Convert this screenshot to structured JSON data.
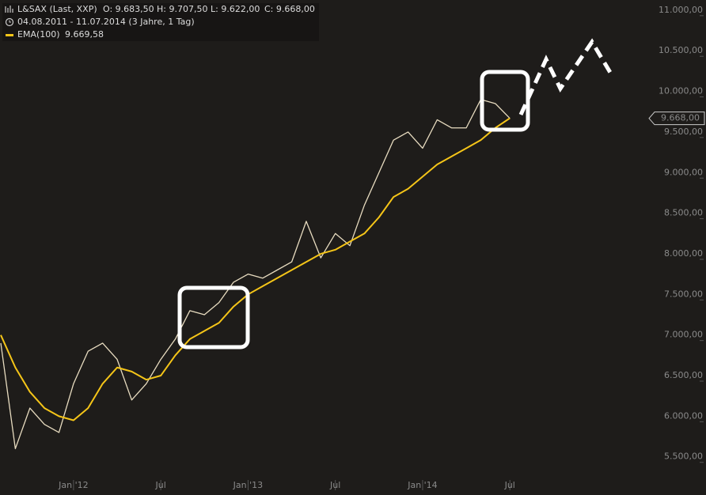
{
  "chart_data": {
    "type": "line",
    "header": {
      "ohlc": [
        "O: 9.683,50",
        "H: 9.707,50",
        "L: 9.622,00",
        "C: 9.668,00"
      ],
      "period": "04.08.2011 - 11.07.2014 (3 Jahre, 1 Tag)",
      "ema_value": "9.669,58"
    },
    "x": [
      "2011-08",
      "2011-09",
      "2011-10",
      "2011-11",
      "2011-12",
      "2012-01",
      "2012-02",
      "2012-03",
      "2012-04",
      "2012-05",
      "2012-06",
      "2012-07",
      "2012-08",
      "2012-09",
      "2012-10",
      "2012-11",
      "2012-12",
      "2013-01",
      "2013-02",
      "2013-03",
      "2013-04",
      "2013-05",
      "2013-06",
      "2013-07",
      "2013-08",
      "2013-09",
      "2013-10",
      "2013-11",
      "2013-12",
      "2014-01",
      "2014-02",
      "2014-03",
      "2014-04",
      "2014-05",
      "2014-06",
      "2014-07"
    ],
    "series": [
      {
        "name": "L&SAX (Last, XXP)",
        "color": "#e8dcc0",
        "values": [
          6900,
          5600,
          6100,
          5900,
          5800,
          6400,
          6800,
          6900,
          6700,
          6200,
          6400,
          6700,
          6950,
          7300,
          7250,
          7400,
          7650,
          7750,
          7700,
          7800,
          7900,
          8400,
          7950,
          8250,
          8100,
          8600,
          9000,
          9400,
          9500,
          9300,
          9650,
          9550,
          9550,
          9900,
          9850,
          9668
        ]
      },
      {
        "name": "EMA(100)",
        "color": "#f5c518",
        "values": [
          7000,
          6600,
          6300,
          6100,
          6000,
          5950,
          6100,
          6400,
          6600,
          6550,
          6450,
          6500,
          6750,
          6950,
          7050,
          7150,
          7350,
          7500,
          7600,
          7700,
          7800,
          7900,
          8000,
          8050,
          8150,
          8250,
          8450,
          8700,
          8800,
          8950,
          9100,
          9200,
          9300,
          9400,
          9550,
          9670
        ]
      }
    ],
    "last_price": 9668,
    "last_price_label": "9.668,00",
    "xlim": [
      "2011-08",
      "2015-05"
    ],
    "xticks": [
      {
        "value": "2012-01",
        "label": "Jan '12"
      },
      {
        "value": "2012-07",
        "label": "Jul"
      },
      {
        "value": "2013-01",
        "label": "Jan '13"
      },
      {
        "value": "2013-07",
        "label": "Jul"
      },
      {
        "value": "2014-01",
        "label": "Jan '14"
      },
      {
        "value": "2014-07",
        "label": "Jul"
      }
    ],
    "ylim": [
      5030,
      11125
    ],
    "yticks": [
      {
        "value": 5500,
        "label": "5.500,00"
      },
      {
        "value": 6000,
        "label": "6.000,00"
      },
      {
        "value": 6500,
        "label": "6.500,00"
      },
      {
        "value": 7000,
        "label": "7.000,00"
      },
      {
        "value": 7500,
        "label": "7.500,00"
      },
      {
        "value": 8000,
        "label": "8.000,00"
      },
      {
        "value": 8500,
        "label": "8.500,00"
      },
      {
        "value": 9000,
        "label": "9.000,00"
      },
      {
        "value": 9500,
        "label": "9.500,00"
      },
      {
        "value": 10000,
        "label": "10.000,00"
      },
      {
        "value": 10500,
        "label": "10.500,00"
      },
      {
        "value": 11000,
        "label": "11.000,00"
      }
    ]
  }
}
